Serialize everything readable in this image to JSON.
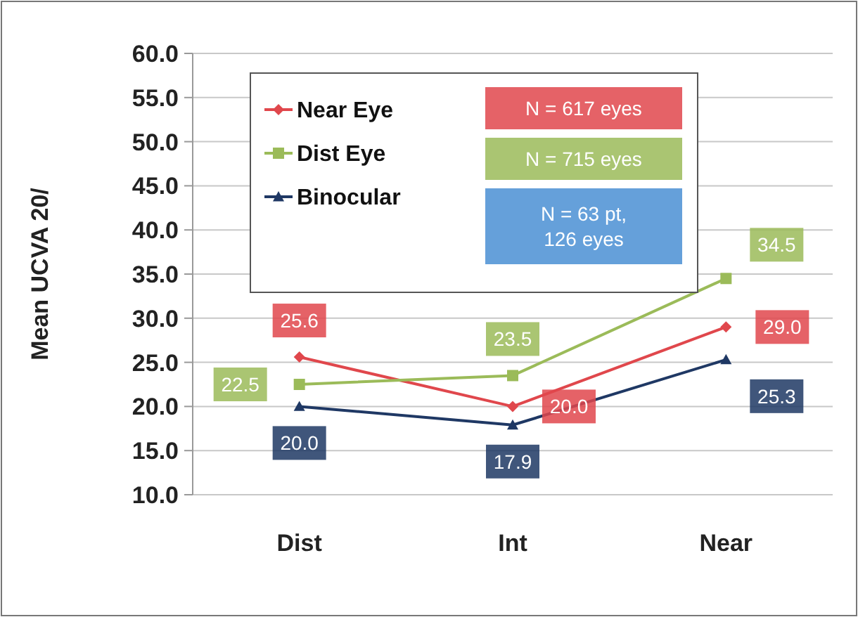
{
  "chart_data": {
    "type": "line",
    "ylabel": "Mean UCVA 20/",
    "categories": [
      "Dist",
      "Int",
      "Near"
    ],
    "ylim": [
      10,
      60
    ],
    "yticks": [
      {
        "value": 10,
        "label": "10.0"
      },
      {
        "value": 15,
        "label": "15.0"
      },
      {
        "value": 20,
        "label": "20.0"
      },
      {
        "value": 25,
        "label": "25.0"
      },
      {
        "value": 30,
        "label": "30.0"
      },
      {
        "value": 35,
        "label": "35.0"
      },
      {
        "value": 40,
        "label": "40.0"
      },
      {
        "value": 45,
        "label": "45.0"
      },
      {
        "value": 50,
        "label": "50.0"
      },
      {
        "value": 55,
        "label": "55.0"
      },
      {
        "value": 60,
        "label": "60.0"
      }
    ],
    "grid": "y",
    "legend": "top",
    "line_style": "solid",
    "series": [
      {
        "name": "Near Eye",
        "color": "#e0474c",
        "marker": "diamond",
        "values": [
          25.6,
          20.0,
          29.0
        ],
        "value_labels": [
          "25.6",
          "20.0",
          "29.0"
        ]
      },
      {
        "name": "Dist Eye",
        "color": "#9bbb59",
        "marker": "square",
        "values": [
          22.5,
          23.5,
          34.5
        ],
        "value_labels": [
          "22.5",
          "23.5",
          "34.5"
        ]
      },
      {
        "name": "Binocular",
        "color": "#1f3864",
        "marker": "triangle",
        "values": [
          20.0,
          17.9,
          25.3
        ],
        "value_labels": [
          "20.0",
          "17.9",
          "25.3"
        ]
      }
    ],
    "annotations": [
      "N = 617 eyes",
      "N = 715 eyes",
      "N = 63 pt, 126 eyes"
    ]
  }
}
